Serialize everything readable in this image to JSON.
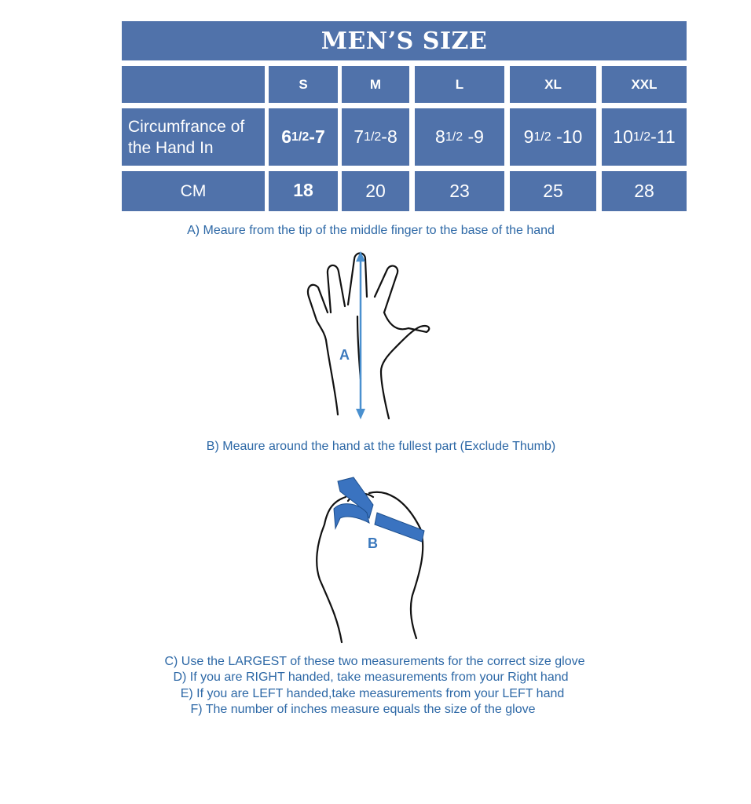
{
  "title": "MEN’S SIZE",
  "table": {
    "sizes": [
      "S",
      "M",
      "L",
      "XL",
      "XXL"
    ],
    "rows": [
      {
        "label": "Circumfrance of the Hand In",
        "values": [
          {
            "whole": "6 ",
            "frac": "1/2",
            "rest": "-7"
          },
          {
            "whole": "7",
            "frac": "1/2",
            "rest": "-8"
          },
          {
            "whole": "8",
            "frac": "1/2",
            "rest": " -9"
          },
          {
            "whole": "9",
            "frac": "1/2",
            "rest": " -10"
          },
          {
            "whole": "10",
            "frac": "1/2",
            "rest": "-11"
          }
        ]
      },
      {
        "label": "CM",
        "values": [
          "18",
          "20",
          "23",
          "25",
          "28"
        ]
      }
    ]
  },
  "instructions": {
    "a": "A) Meaure from the tip of the middle finger to the base of the hand",
    "b": "B) Meaure around the hand at the fullest part (Exclude Thumb)",
    "c": "C) Use the LARGEST of these two measurements for the correct size glove",
    "d": "D) If you are RIGHT handed, take measurements from your Right hand",
    "e": "E) If you are LEFT handed,take measurements from your LEFT hand",
    "f": "F) The number of inches measure equals the size of the glove"
  },
  "diagrams": {
    "label_a": "A",
    "label_b": "B"
  },
  "colors": {
    "table": "#5072aa",
    "text": "#2d68a6",
    "tape": "#3a73c0"
  }
}
